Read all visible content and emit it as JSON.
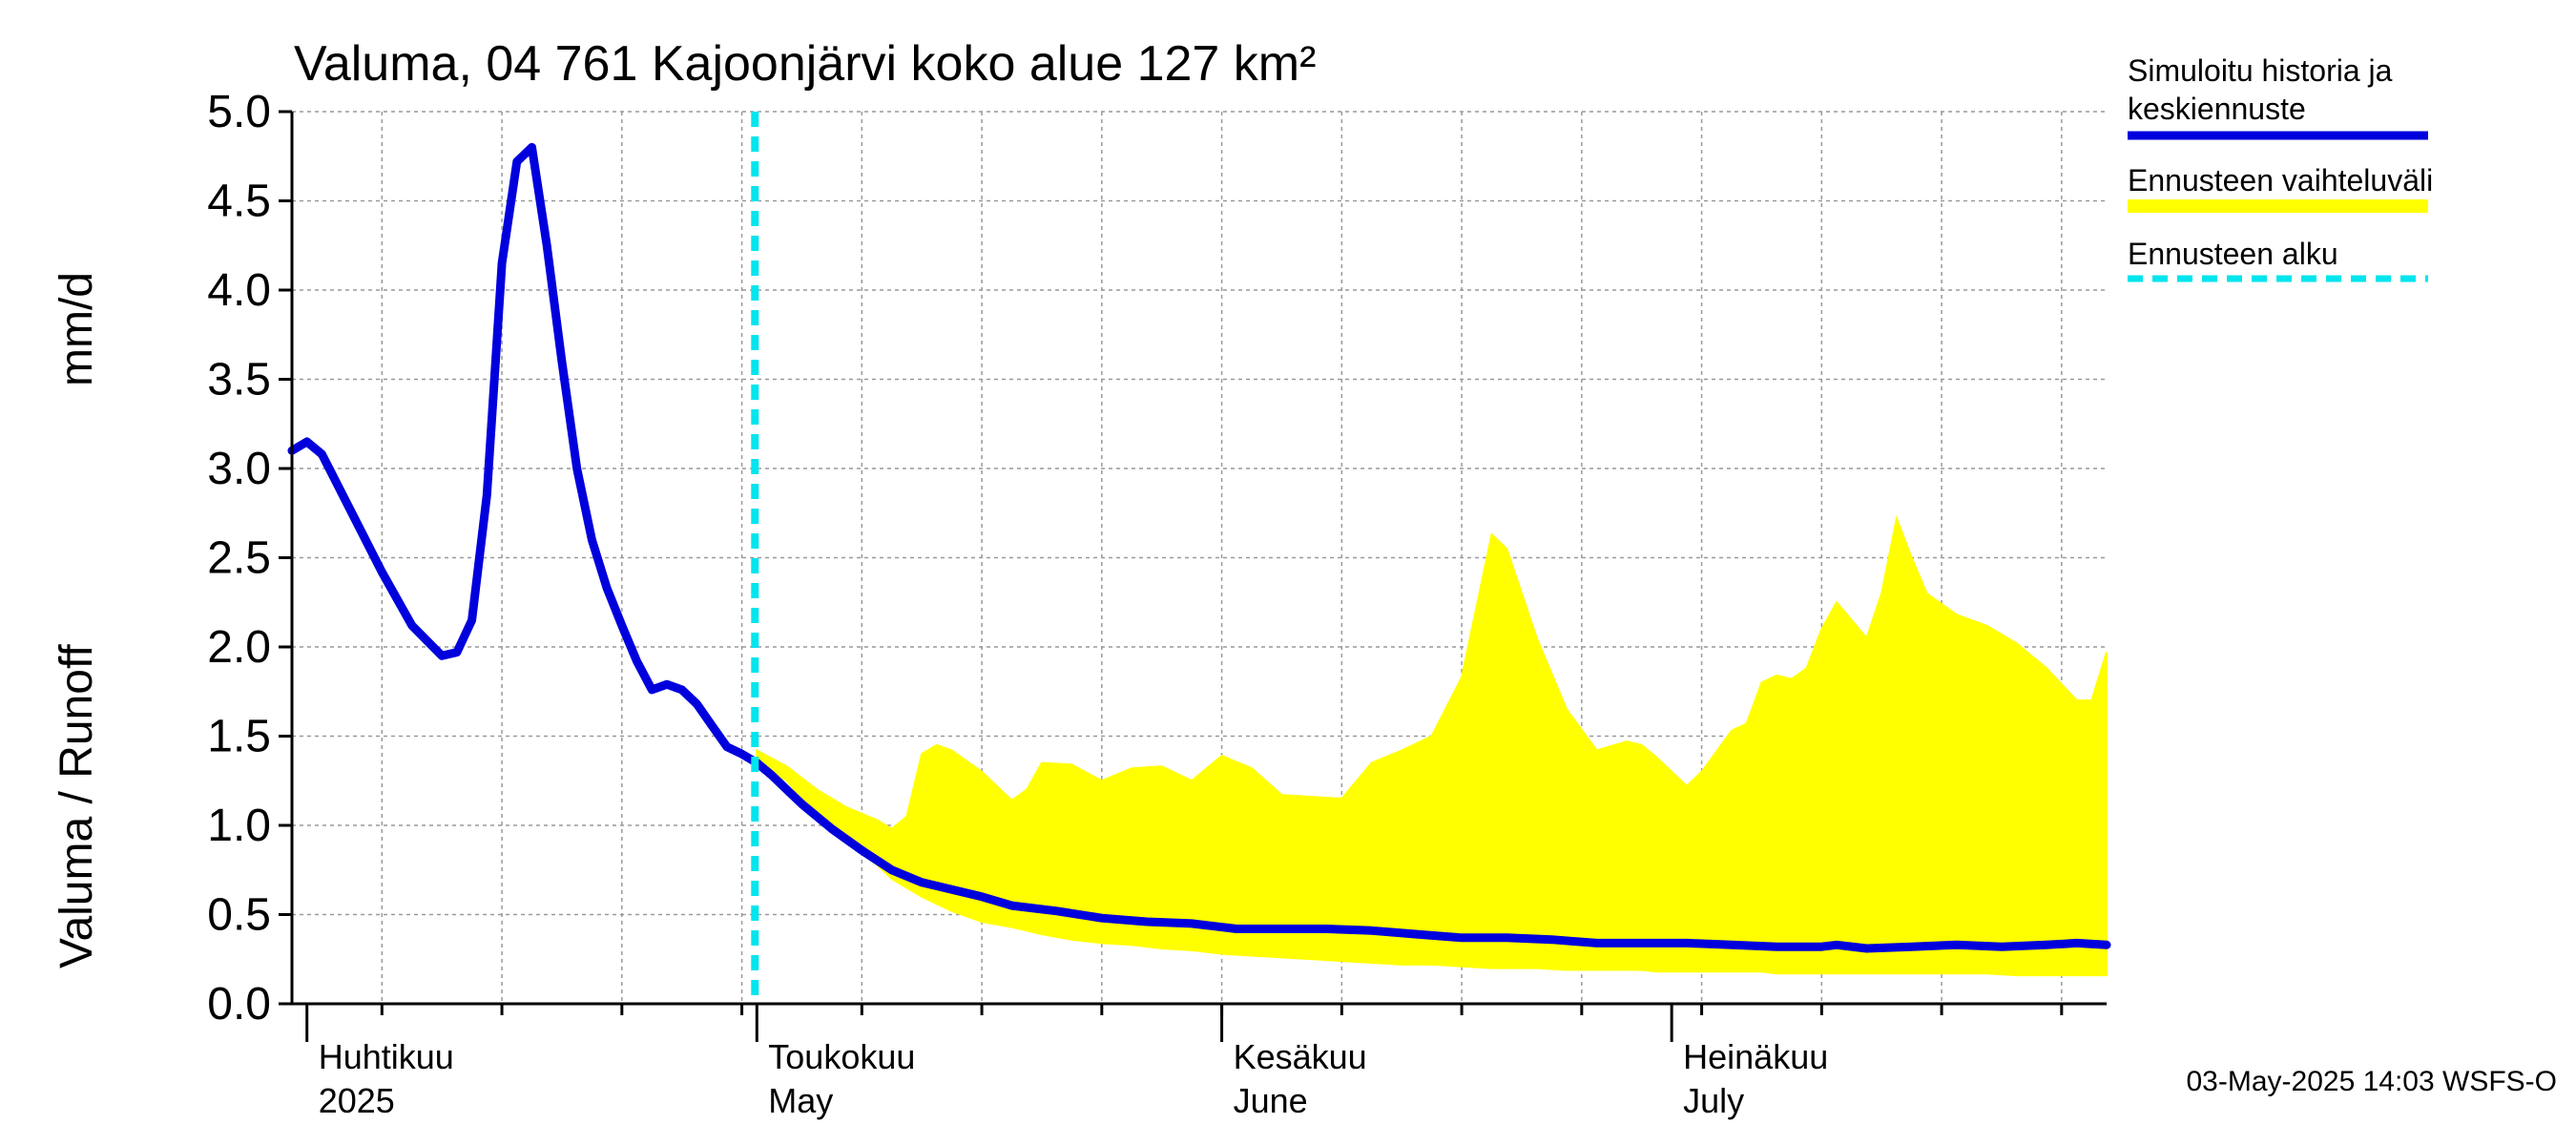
{
  "chart_data": {
    "type": "area",
    "title": "Valuma, 04 761 Kajoonjärvi koko alue 127 km²",
    "ylabel_left": "Valuma / Runoff",
    "ylabel_right": "mm/d",
    "ylim": [
      0,
      5
    ],
    "yticks": [
      "0.0",
      "0.5",
      "1.0",
      "1.5",
      "2.0",
      "2.5",
      "3.0",
      "3.5",
      "4.0",
      "4.5",
      "5.0"
    ],
    "xlim": [
      "2025-03-31",
      "2025-07-30"
    ],
    "month_labels": [
      {
        "line1": "Huhtikuu",
        "line2": "2025",
        "date": "2025-04-01"
      },
      {
        "line1": "Toukokuu",
        "line2": "May",
        "date": "2025-05-01"
      },
      {
        "line1": "Kesäkuu",
        "line2": "June",
        "date": "2025-06-01"
      },
      {
        "line1": "Heinäkuu",
        "line2": "July",
        "date": "2025-07-01"
      }
    ],
    "forecast_start": "2025-05-01",
    "legend": [
      {
        "label_line1": "Simuloitu historia ja",
        "label_line2": "keskiennuste",
        "color": "#0000dd",
        "style": "solid"
      },
      {
        "label_line1": "Ennusteen vaihteluväli",
        "label_line2": "",
        "color": "#ffff00",
        "style": "band"
      },
      {
        "label_line1": "Ennusteen alku",
        "label_line2": "",
        "color": "#00e5ee",
        "style": "dashed"
      }
    ],
    "series": [
      {
        "name": "Simuloitu historia ja keskiennuste",
        "color": "#0000dd",
        "x": [
          "2025-03-31",
          "2025-04-01",
          "2025-04-02",
          "2025-04-04",
          "2025-04-06",
          "2025-04-08",
          "2025-04-10",
          "2025-04-11",
          "2025-04-12",
          "2025-04-13",
          "2025-04-14",
          "2025-04-15",
          "2025-04-16",
          "2025-04-17",
          "2025-04-18",
          "2025-04-19",
          "2025-04-20",
          "2025-04-21",
          "2025-04-22",
          "2025-04-23",
          "2025-04-24",
          "2025-04-25",
          "2025-04-26",
          "2025-04-27",
          "2025-04-28",
          "2025-04-29",
          "2025-04-30",
          "2025-05-01",
          "2025-05-02",
          "2025-05-04",
          "2025-05-06",
          "2025-05-08",
          "2025-05-10",
          "2025-05-12",
          "2025-05-14",
          "2025-05-16",
          "2025-05-18",
          "2025-05-21",
          "2025-05-24",
          "2025-05-27",
          "2025-05-30",
          "2025-06-02",
          "2025-06-05",
          "2025-06-08",
          "2025-06-11",
          "2025-06-14",
          "2025-06-17",
          "2025-06-20",
          "2025-06-23",
          "2025-06-26",
          "2025-06-29",
          "2025-07-02",
          "2025-07-05",
          "2025-07-08",
          "2025-07-11",
          "2025-07-12",
          "2025-07-14",
          "2025-07-17",
          "2025-07-20",
          "2025-07-23",
          "2025-07-26",
          "2025-07-28",
          "2025-07-30"
        ],
        "values": [
          3.1,
          3.15,
          3.08,
          2.75,
          2.42,
          2.12,
          1.95,
          1.97,
          2.15,
          2.85,
          4.15,
          4.72,
          4.8,
          4.25,
          3.6,
          3.0,
          2.6,
          2.33,
          2.12,
          1.92,
          1.76,
          1.79,
          1.76,
          1.68,
          1.56,
          1.44,
          1.4,
          1.35,
          1.28,
          1.12,
          0.98,
          0.86,
          0.75,
          0.68,
          0.64,
          0.6,
          0.55,
          0.52,
          0.48,
          0.46,
          0.45,
          0.42,
          0.42,
          0.42,
          0.41,
          0.39,
          0.37,
          0.37,
          0.36,
          0.34,
          0.34,
          0.34,
          0.33,
          0.32,
          0.32,
          0.33,
          0.31,
          0.32,
          0.33,
          0.32,
          0.33,
          0.34,
          0.33
        ]
      }
    ],
    "band": {
      "name": "Ennusteen vaihteluväli",
      "color": "#ffff00",
      "x": [
        "2025-05-01",
        "2025-05-03",
        "2025-05-05",
        "2025-05-07",
        "2025-05-09",
        "2025-05-10",
        "2025-05-11",
        "2025-05-12",
        "2025-05-13",
        "2025-05-14",
        "2025-05-16",
        "2025-05-18",
        "2025-05-19",
        "2025-05-20",
        "2025-05-22",
        "2025-05-24",
        "2025-05-26",
        "2025-05-28",
        "2025-05-30",
        "2025-06-01",
        "2025-06-03",
        "2025-06-05",
        "2025-06-07",
        "2025-06-09",
        "2025-06-11",
        "2025-06-13",
        "2025-06-15",
        "2025-06-17",
        "2025-06-19",
        "2025-06-20",
        "2025-06-21",
        "2025-06-22",
        "2025-06-24",
        "2025-06-26",
        "2025-06-28",
        "2025-06-29",
        "2025-06-30",
        "2025-07-02",
        "2025-07-03",
        "2025-07-05",
        "2025-07-06",
        "2025-07-07",
        "2025-07-08",
        "2025-07-09",
        "2025-07-10",
        "2025-07-11",
        "2025-07-12",
        "2025-07-13",
        "2025-07-14",
        "2025-07-15",
        "2025-07-16",
        "2025-07-17",
        "2025-07-18",
        "2025-07-20",
        "2025-07-22",
        "2025-07-24",
        "2025-07-26",
        "2025-07-28",
        "2025-07-29",
        "2025-07-30"
      ],
      "upper": [
        1.42,
        1.33,
        1.2,
        1.1,
        1.03,
        0.98,
        1.05,
        1.4,
        1.45,
        1.42,
        1.3,
        1.14,
        1.2,
        1.35,
        1.34,
        1.25,
        1.32,
        1.33,
        1.25,
        1.39,
        1.32,
        1.17,
        1.16,
        1.15,
        1.35,
        1.42,
        1.5,
        1.83,
        2.63,
        2.55,
        2.3,
        2.05,
        1.65,
        1.42,
        1.47,
        1.45,
        1.38,
        1.22,
        1.3,
        1.53,
        1.57,
        1.8,
        1.84,
        1.82,
        1.88,
        2.1,
        2.25,
        2.15,
        2.05,
        2.3,
        2.72,
        2.5,
        2.3,
        2.18,
        2.12,
        2.02,
        1.88,
        1.7,
        1.7,
        1.97
      ],
      "lower": [
        1.35,
        1.25,
        1.05,
        0.9,
        0.78,
        0.7,
        0.65,
        0.6,
        0.56,
        0.52,
        0.46,
        0.43,
        0.41,
        0.39,
        0.36,
        0.34,
        0.33,
        0.31,
        0.3,
        0.28,
        0.27,
        0.26,
        0.25,
        0.24,
        0.23,
        0.22,
        0.22,
        0.21,
        0.2,
        0.2,
        0.2,
        0.2,
        0.19,
        0.19,
        0.19,
        0.19,
        0.18,
        0.18,
        0.18,
        0.18,
        0.18,
        0.18,
        0.17,
        0.17,
        0.17,
        0.17,
        0.17,
        0.17,
        0.17,
        0.17,
        0.17,
        0.17,
        0.17,
        0.17,
        0.17,
        0.16,
        0.16,
        0.16,
        0.16,
        0.16
      ]
    },
    "grid": true
  },
  "footer": "03-May-2025 14:03 WSFS-O"
}
